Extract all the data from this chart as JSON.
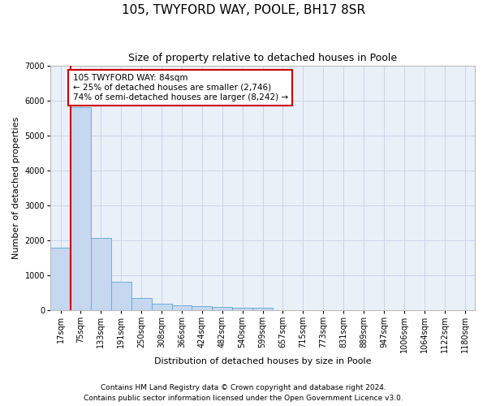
{
  "title": "105, TWYFORD WAY, POOLE, BH17 8SR",
  "subtitle": "Size of property relative to detached houses in Poole",
  "xlabel": "Distribution of detached houses by size in Poole",
  "ylabel": "Number of detached properties",
  "bar_labels": [
    "17sqm",
    "75sqm",
    "133sqm",
    "191sqm",
    "250sqm",
    "308sqm",
    "366sqm",
    "424sqm",
    "482sqm",
    "540sqm",
    "599sqm",
    "657sqm",
    "715sqm",
    "773sqm",
    "831sqm",
    "889sqm",
    "947sqm",
    "1006sqm",
    "1064sqm",
    "1122sqm",
    "1180sqm"
  ],
  "bar_values": [
    1780,
    5800,
    2060,
    820,
    340,
    190,
    130,
    115,
    100,
    70,
    65,
    0,
    0,
    0,
    0,
    0,
    0,
    0,
    0,
    0,
    0
  ],
  "bar_color": "#c5d8ef",
  "bar_edge_color": "#6baed6",
  "grid_color": "#c8d4e8",
  "background_color": "#eaf0f8",
  "vline_color": "#cc0000",
  "annotation_text": "105 TWYFORD WAY: 84sqm\n← 25% of detached houses are smaller (2,746)\n74% of semi-detached houses are larger (8,242) →",
  "annotation_box_color": "#ffffff",
  "annotation_box_edge": "#cc0000",
  "ylim": [
    0,
    7000
  ],
  "yticks": [
    0,
    1000,
    2000,
    3000,
    4000,
    5000,
    6000,
    7000
  ],
  "footnote1": "Contains HM Land Registry data © Crown copyright and database right 2024.",
  "footnote2": "Contains public sector information licensed under the Open Government Licence v3.0.",
  "title_fontsize": 11,
  "subtitle_fontsize": 9,
  "tick_fontsize": 7,
  "ylabel_fontsize": 8,
  "xlabel_fontsize": 8
}
